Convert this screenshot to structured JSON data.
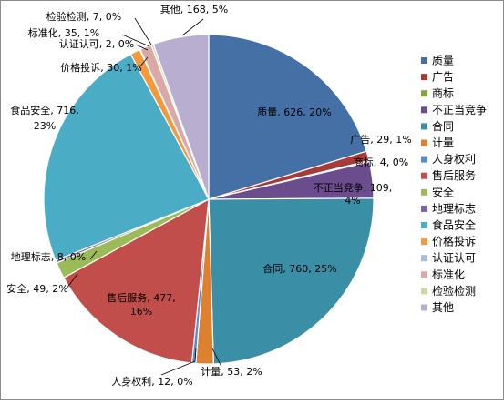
{
  "chart_data": {
    "type": "pie",
    "title": "",
    "legend_position": "right",
    "slices": [
      {
        "name": "质量",
        "value": 626,
        "percent": "20%",
        "color": "#4470a5",
        "label": [
          "质量, 626, 20%"
        ]
      },
      {
        "name": "广告",
        "value": 29,
        "percent": "1%",
        "color": "#a83a37",
        "label": [
          "广告, 29, 1%"
        ]
      },
      {
        "name": "商标",
        "value": 4,
        "percent": "0%",
        "color": "#83a33d",
        "label": [
          "商标, 4, 0%"
        ]
      },
      {
        "name": "不正当竞争",
        "value": 109,
        "percent": "4%",
        "color": "#6b4d8e",
        "label": [
          "不正当竞争, 109,",
          "4%"
        ]
      },
      {
        "name": "合同",
        "value": 760,
        "percent": "25%",
        "color": "#3a8ea6",
        "label": [
          "合同, 760, 25%"
        ]
      },
      {
        "name": "计量",
        "value": 53,
        "percent": "2%",
        "color": "#dd8131",
        "label": [
          "计量, 53, 2%"
        ]
      },
      {
        "name": "人身权利",
        "value": 12,
        "percent": "0%",
        "color": "#5b8bcb",
        "label": [
          "人身权利, 12, 0%"
        ]
      },
      {
        "name": "售后服务",
        "value": 477,
        "percent": "16%",
        "color": "#c24e4b",
        "label": [
          "售后服务, 477,",
          "16%"
        ]
      },
      {
        "name": "安全",
        "value": 49,
        "percent": "2%",
        "color": "#9bbb59",
        "label": [
          "安全, 49, 2%"
        ]
      },
      {
        "name": "地理标志",
        "value": 8,
        "percent": "0%",
        "color": "#7f62a2",
        "label": [
          "地理标志, 8, 0%"
        ]
      },
      {
        "name": "食品安全",
        "value": 716,
        "percent": "23%",
        "color": "#4aacc5",
        "label": [
          "食品安全, 716,",
          "23%"
        ]
      },
      {
        "name": "价格投诉",
        "value": 30,
        "percent": "1%",
        "color": "#f59a3c",
        "label": [
          "价格投诉, 30, 1%"
        ]
      },
      {
        "name": "认证认可",
        "value": 2,
        "percent": "0%",
        "color": "#a6bddb",
        "label": [
          "认证认可, 2, 0%"
        ]
      },
      {
        "name": "标准化",
        "value": 35,
        "percent": "1%",
        "color": "#daa8a6",
        "label": [
          "标准化, 35, 1%"
        ]
      },
      {
        "name": "检验检测",
        "value": 7,
        "percent": "0%",
        "color": "#c9dba2",
        "label": [
          "检验检测, 7, 0%"
        ]
      },
      {
        "name": "其他",
        "value": 168,
        "percent": "5%",
        "color": "#b8aed0",
        "label": [
          "其他, 168, 5%"
        ]
      }
    ]
  }
}
